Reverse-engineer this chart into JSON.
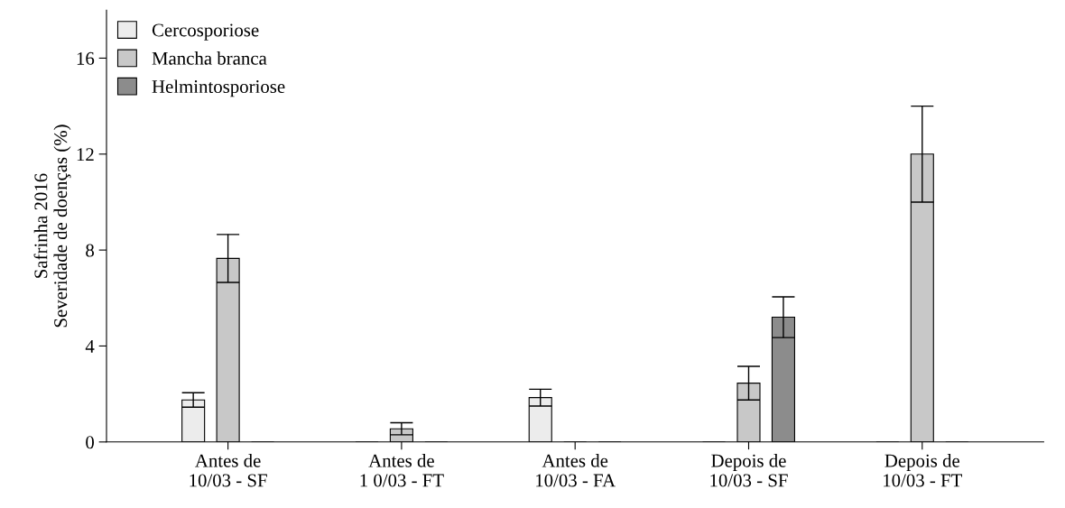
{
  "chart_data": {
    "type": "bar",
    "ylabel": "Safrinha 2016\nSeveridade de doenças (%)",
    "categories": [
      "Antes de\n10/03 - SF",
      "Antes de\n1 0/03 - FT",
      "Antes de\n10/03 - FA",
      "Depois de\n10/03 - SF",
      "Depois de\n10/03 - FT"
    ],
    "series": [
      {
        "name": "Cercosporiose",
        "color": "#ececec",
        "values": [
          1.75,
          0,
          1.85,
          0,
          0
        ],
        "errors": [
          0.3,
          null,
          0.35,
          null,
          null
        ]
      },
      {
        "name": "Mancha branca",
        "color": "#c8c8c8",
        "values": [
          7.65,
          0.55,
          0,
          2.45,
          12.0
        ],
        "errors": [
          1.0,
          0.25,
          null,
          0.7,
          2.0
        ]
      },
      {
        "name": "Helmintosporiose",
        "color": "#8c8c8c",
        "values": [
          0,
          0,
          0,
          5.2,
          0
        ],
        "errors": [
          null,
          null,
          null,
          0.85,
          null
        ]
      }
    ],
    "ylim": [
      0,
      18
    ],
    "yticks": [
      0,
      4,
      8,
      12,
      16
    ],
    "grid": false,
    "legend": "top left"
  }
}
